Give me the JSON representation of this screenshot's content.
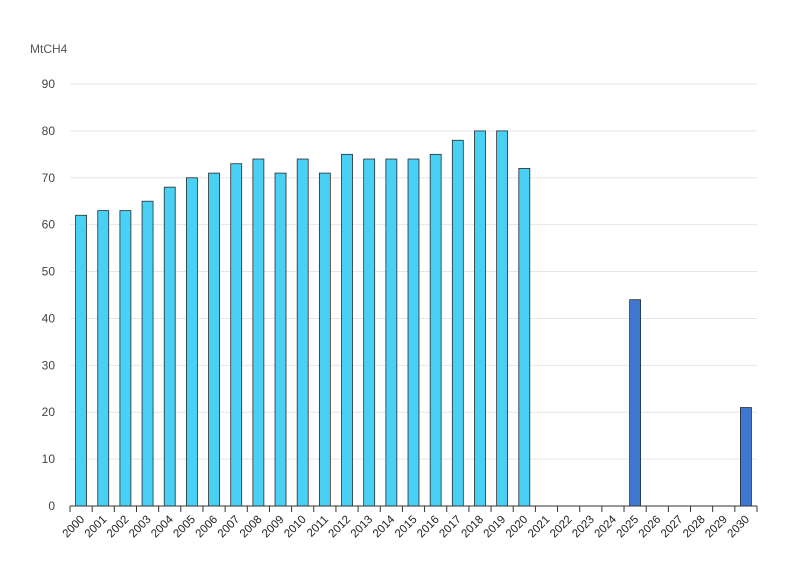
{
  "chart_data": {
    "type": "bar",
    "ylabel": "MtCH4",
    "ylim": [
      0,
      90
    ],
    "yticks": [
      0,
      10,
      20,
      30,
      40,
      50,
      60,
      70,
      80,
      90
    ],
    "grid": true,
    "categories": [
      "2000",
      "2001",
      "2002",
      "2003",
      "2004",
      "2005",
      "2006",
      "2007",
      "2008",
      "2009",
      "2010",
      "2011",
      "2012",
      "2013",
      "2014",
      "2015",
      "2016",
      "2017",
      "2018",
      "2019",
      "2020",
      "2021",
      "2022",
      "2023",
      "2024",
      "2025",
      "2026",
      "2027",
      "2028",
      "2029",
      "2030"
    ],
    "series": [
      {
        "color": "#48d1f5",
        "values": [
          62,
          63,
          63,
          65,
          68,
          70,
          71,
          73,
          74,
          71,
          74,
          71,
          75,
          74,
          74,
          74,
          75,
          78,
          80,
          80,
          72,
          null,
          null,
          null,
          null,
          null,
          null,
          null,
          null,
          null,
          null
        ]
      },
      {
        "color": "#3f78d1",
        "values": [
          null,
          null,
          null,
          null,
          null,
          null,
          null,
          null,
          null,
          null,
          null,
          null,
          null,
          null,
          null,
          null,
          null,
          null,
          null,
          null,
          null,
          null,
          null,
          null,
          null,
          44,
          null,
          null,
          null,
          null,
          21
        ]
      }
    ]
  }
}
